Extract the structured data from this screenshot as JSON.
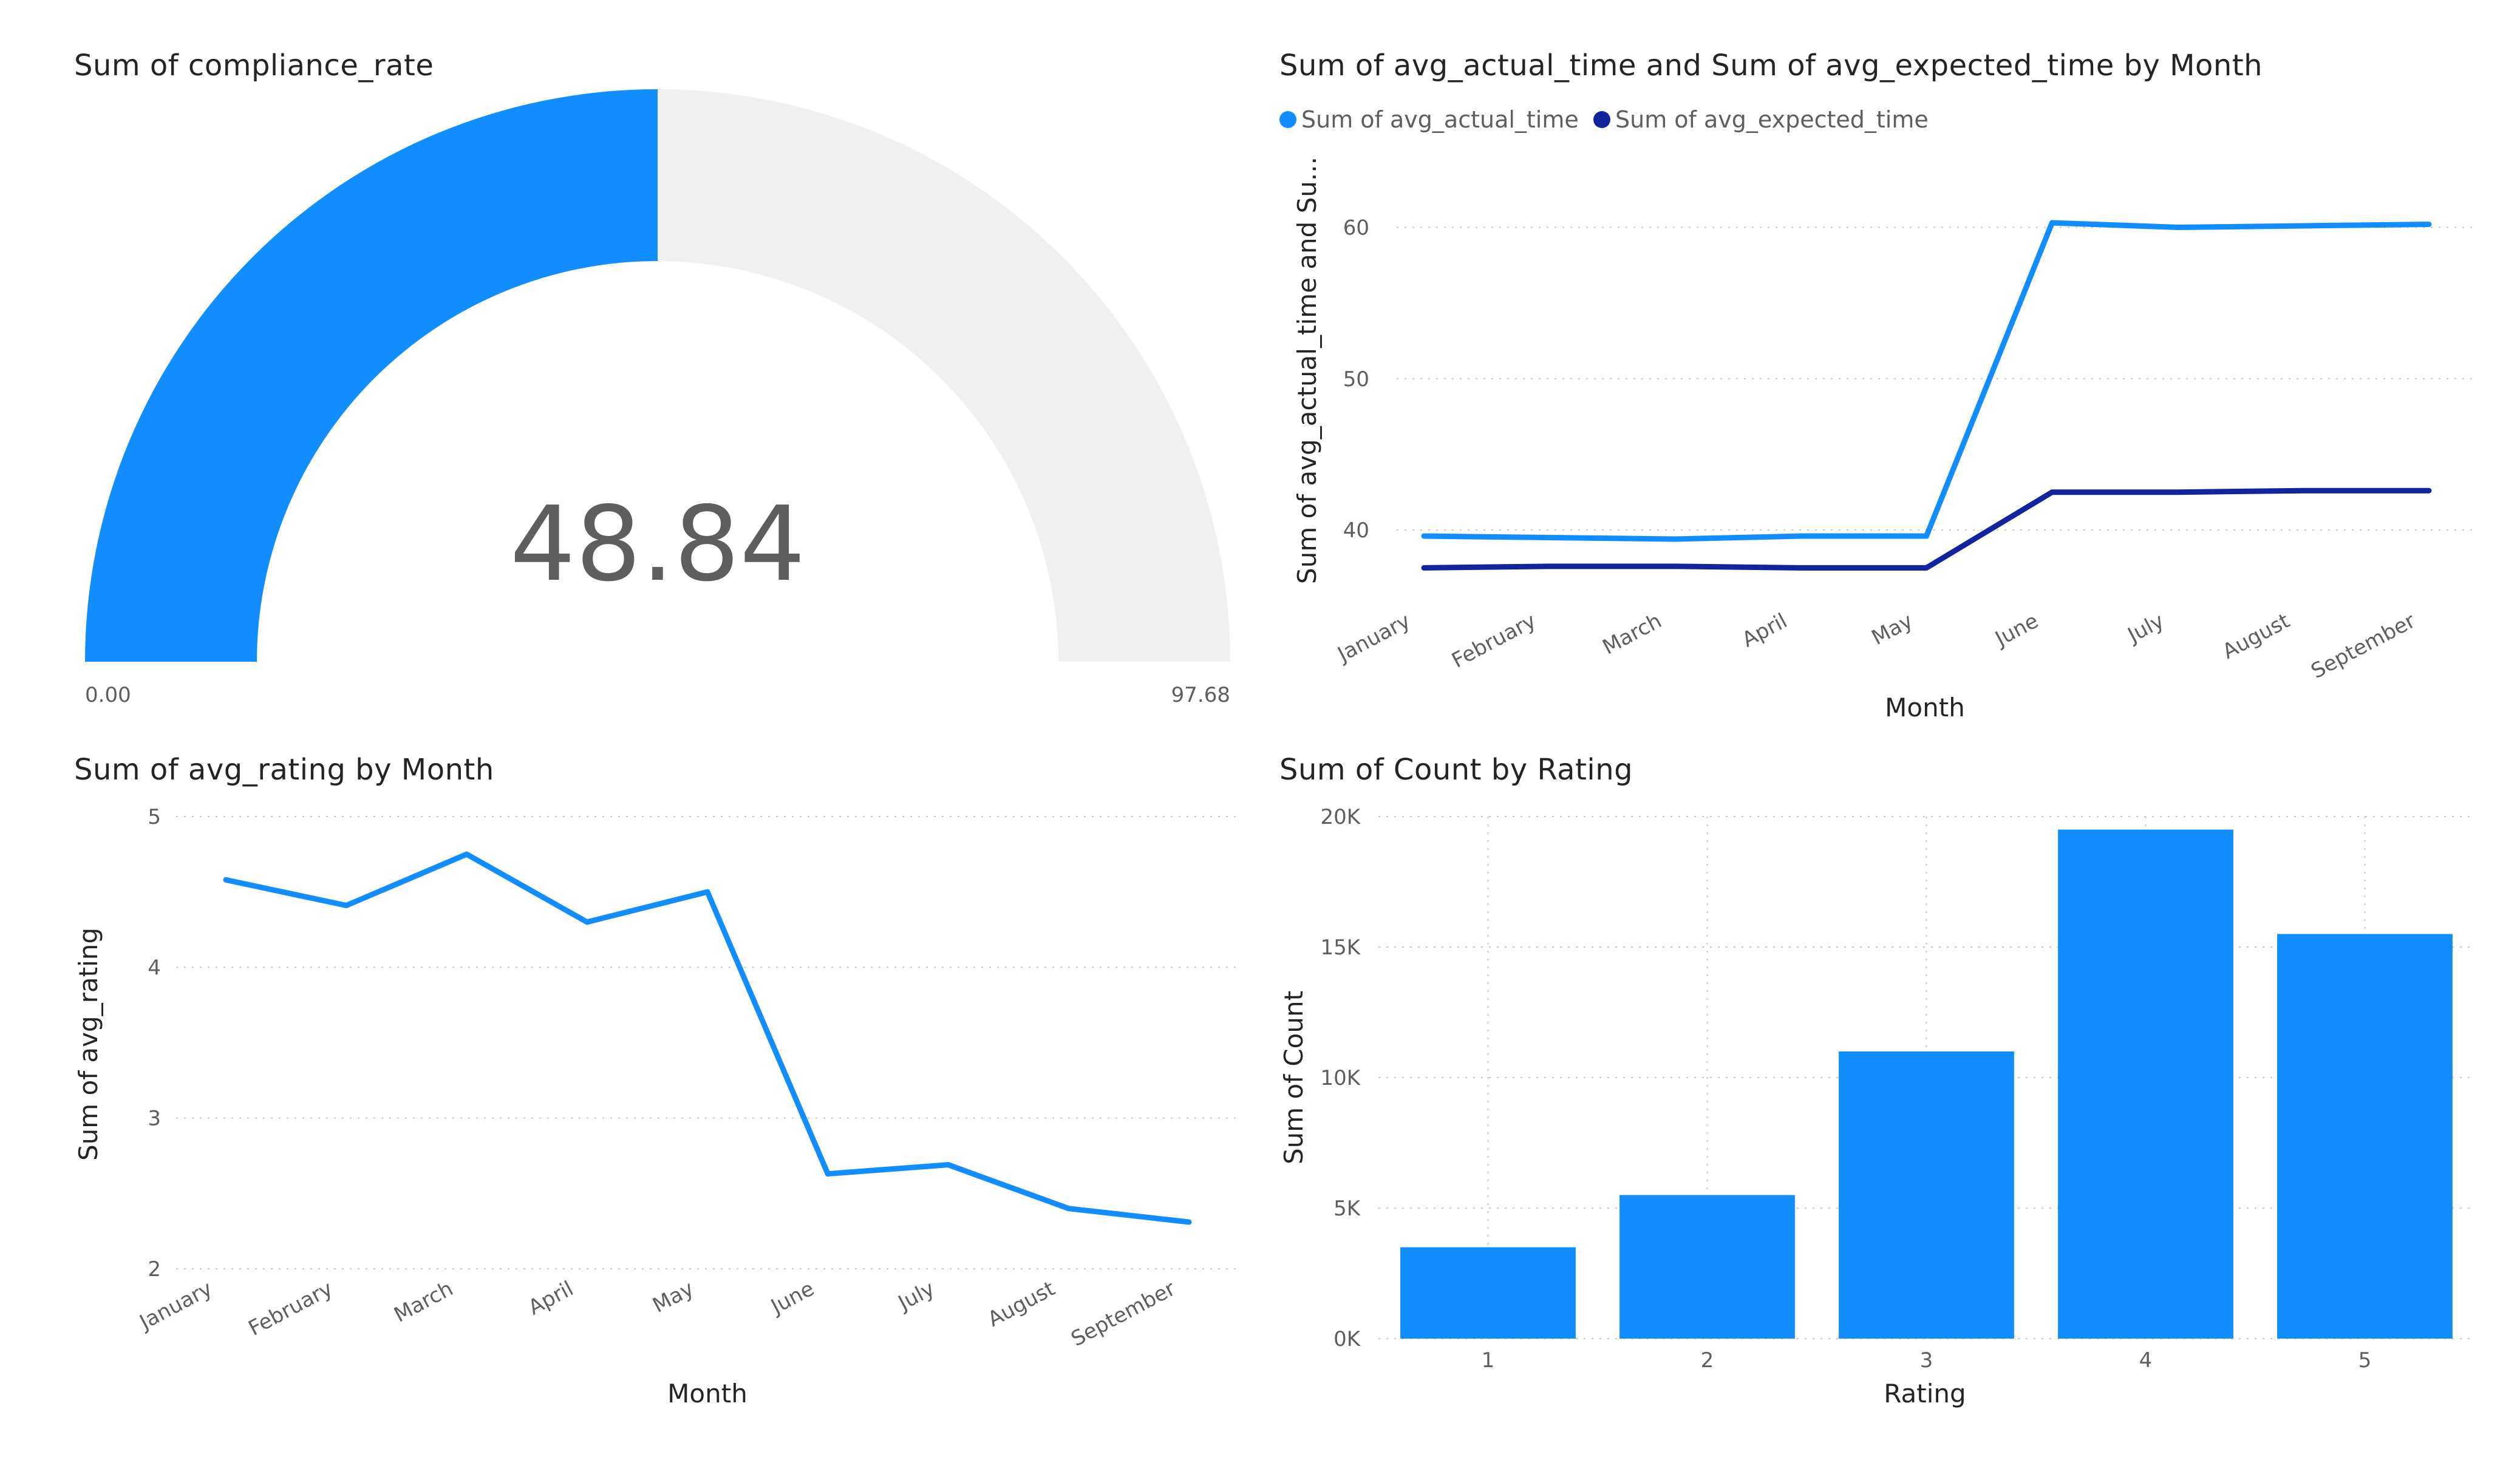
{
  "colors": {
    "accent": "#118DFF",
    "dark_series": "#12239E",
    "gauge_track": "#F0F0F0",
    "gridline": "#C8C8C8"
  },
  "chart_data": [
    {
      "type": "gauge",
      "title": "Sum of compliance_rate",
      "value": 48.84,
      "value_label": "48.84",
      "min": 0,
      "max": 97.68,
      "min_label": "0.00",
      "max_label": "97.68"
    },
    {
      "type": "line",
      "title": "Sum of avg_actual_time and Sum of avg_expected_time by Month",
      "xlabel": "Month",
      "ylabel": "Sum of avg_actual_time and Su...",
      "categories": [
        "January",
        "February",
        "March",
        "April",
        "May",
        "June",
        "July",
        "August",
        "September"
      ],
      "series": [
        {
          "name": "Sum of avg_actual_time",
          "color": "#118DFF",
          "values": [
            39.6,
            39.5,
            39.4,
            39.6,
            39.6,
            60.3,
            60.0,
            60.1,
            60.2
          ]
        },
        {
          "name": "Sum of avg_expected_time",
          "color": "#12239E",
          "values": [
            37.5,
            37.6,
            37.6,
            37.5,
            37.5,
            42.5,
            42.5,
            42.6,
            42.6
          ]
        }
      ],
      "ylim": [
        32.5,
        67
      ],
      "yticks": [
        40,
        50,
        60
      ],
      "ytick_labels": [
        "40",
        "50",
        "60"
      ],
      "legend": "top-left",
      "grid": true
    },
    {
      "type": "line",
      "title": "Sum of avg_rating by Month",
      "xlabel": "Month",
      "ylabel": "Sum of avg_rating",
      "categories": [
        "January",
        "February",
        "March",
        "April",
        "May",
        "June",
        "July",
        "August",
        "September"
      ],
      "series": [
        {
          "color": "#118DFF",
          "values": [
            4.58,
            4.41,
            4.75,
            4.3,
            4.5,
            2.63,
            2.69,
            2.4,
            2.31
          ]
        }
      ],
      "ylim": [
        2,
        5
      ],
      "yticks": [
        2,
        3,
        4,
        5
      ],
      "ytick_labels": [
        "2",
        "3",
        "4",
        "5"
      ],
      "grid": true
    },
    {
      "type": "bar",
      "title": "Sum of Count by Rating",
      "xlabel": "Rating",
      "ylabel": "Sum of Count",
      "categories": [
        "1",
        "2",
        "3",
        "4",
        "5"
      ],
      "values": [
        3500,
        5500,
        11000,
        19500,
        15500
      ],
      "color": "#118DFF",
      "ylim": [
        0,
        20000
      ],
      "yticks": [
        0,
        5000,
        10000,
        15000,
        20000
      ],
      "ytick_labels": [
        "0K",
        "5K",
        "10K",
        "15K",
        "20K"
      ],
      "grid": true
    }
  ]
}
